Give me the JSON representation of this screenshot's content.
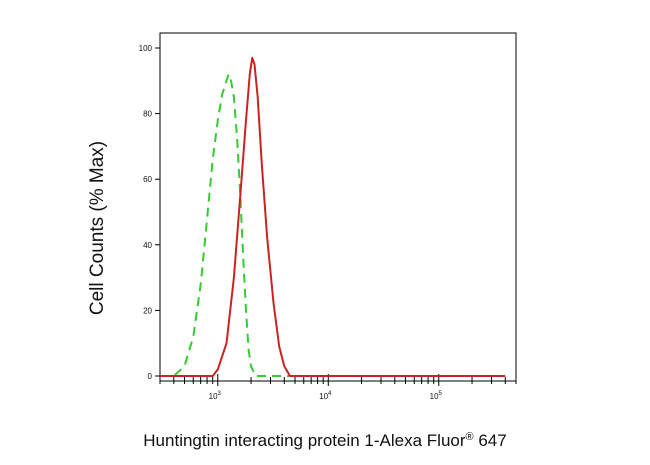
{
  "chart_data": {
    "type": "line",
    "xlabel": "Huntingtin interacting protein 1-Alexa Fluor",
    "xlabel_mark": "®",
    "xlabel_suffix": " 647",
    "ylabel": "Cell Counts (% Max)",
    "x_scale": "log",
    "xlim": [
      300,
      500000
    ],
    "ylim": [
      0,
      100
    ],
    "y_ticks": [
      0,
      20,
      40,
      60,
      80,
      100
    ],
    "x_major_ticks": [
      {
        "value": 1000,
        "base": "10",
        "exp": "3"
      },
      {
        "value": 10000,
        "base": "10",
        "exp": "4"
      },
      {
        "value": 100000,
        "base": "10",
        "exp": "5"
      }
    ],
    "grid": false,
    "series": [
      {
        "style": "dashed",
        "color": "#33cc33",
        "points": [
          [
            300,
            0
          ],
          [
            400,
            0
          ],
          [
            500,
            3
          ],
          [
            600,
            12
          ],
          [
            700,
            28
          ],
          [
            800,
            48
          ],
          [
            900,
            66
          ],
          [
            1000,
            78
          ],
          [
            1100,
            86
          ],
          [
            1200,
            90
          ],
          [
            1250,
            92
          ],
          [
            1320,
            90
          ],
          [
            1400,
            85
          ],
          [
            1500,
            72
          ],
          [
            1600,
            55
          ],
          [
            1700,
            36
          ],
          [
            1800,
            20
          ],
          [
            1900,
            8
          ],
          [
            2000,
            3
          ],
          [
            2200,
            0
          ],
          [
            300000,
            0
          ]
        ]
      },
      {
        "style": "solid",
        "color": "#cc2222",
        "points": [
          [
            300,
            0
          ],
          [
            900,
            0
          ],
          [
            1000,
            2
          ],
          [
            1200,
            10
          ],
          [
            1400,
            30
          ],
          [
            1600,
            55
          ],
          [
            1800,
            78
          ],
          [
            1950,
            92
          ],
          [
            2050,
            97
          ],
          [
            2150,
            95
          ],
          [
            2300,
            85
          ],
          [
            2500,
            65
          ],
          [
            2800,
            42
          ],
          [
            3200,
            22
          ],
          [
            3600,
            9
          ],
          [
            4000,
            3
          ],
          [
            4500,
            0
          ],
          [
            400000,
            0
          ]
        ]
      }
    ]
  }
}
